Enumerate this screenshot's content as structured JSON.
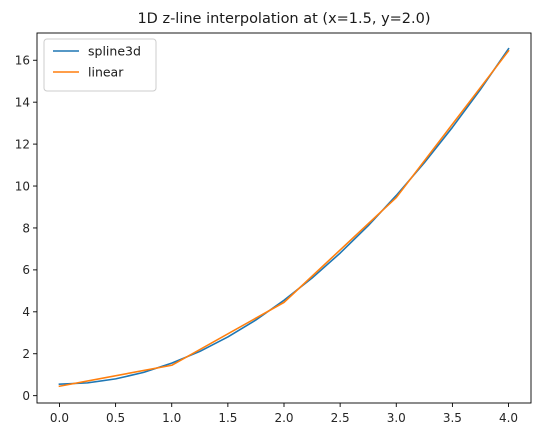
{
  "chart_data": {
    "type": "line",
    "title": "1D z-line interpolation at (x=1.5, y=2.0)",
    "xlabel": "",
    "ylabel": "",
    "xlim": [
      -0.2,
      4.2
    ],
    "ylim": [
      -0.35,
      17.3
    ],
    "xticks": [
      0.0,
      0.5,
      1.0,
      1.5,
      2.0,
      2.5,
      3.0,
      3.5,
      4.0
    ],
    "xtick_labels": [
      "0.0",
      "0.5",
      "1.0",
      "1.5",
      "2.0",
      "2.5",
      "3.0",
      "3.5",
      "4.0"
    ],
    "yticks": [
      0,
      2,
      4,
      6,
      8,
      10,
      12,
      14,
      16
    ],
    "ytick_labels": [
      "0",
      "2",
      "4",
      "6",
      "8",
      "10",
      "12",
      "14",
      "16"
    ],
    "grid": false,
    "legend_position": "top-left",
    "series": [
      {
        "name": "spline3d",
        "color": "#1f77b4",
        "x": [
          0.0,
          0.25,
          0.5,
          0.75,
          1.0,
          1.25,
          1.5,
          1.75,
          2.0,
          2.25,
          2.5,
          2.75,
          3.0,
          3.25,
          3.5,
          3.75,
          4.0
        ],
        "y": [
          0.55,
          0.61,
          0.8,
          1.11,
          1.55,
          2.11,
          2.8,
          3.61,
          4.55,
          5.61,
          6.8,
          8.11,
          9.55,
          11.11,
          12.8,
          14.61,
          16.55
        ]
      },
      {
        "name": "linear",
        "color": "#ff7f0e",
        "x": [
          0.0,
          1.0,
          2.0,
          3.0,
          4.0
        ],
        "y": [
          0.45,
          1.45,
          4.45,
          9.45,
          16.45
        ]
      }
    ]
  }
}
